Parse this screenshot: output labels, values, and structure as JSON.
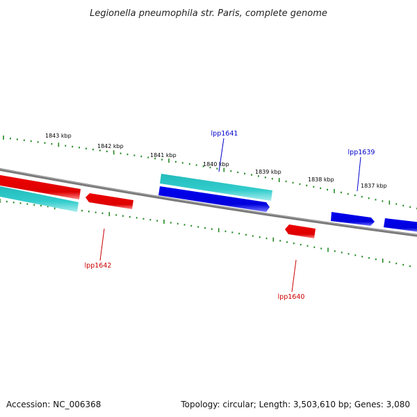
{
  "title": "Legionella pneumophila str. Paris, complete genome",
  "footer": {
    "accession": "Accession: NC_006368",
    "stats": "Topology: circular; Length: 3,503,610 bp; Genes: 3,080"
  },
  "kbp_labels": [
    "1843 kbp",
    "1842 kbp",
    "1841 kbp",
    "1840 kbp",
    "1839 kbp",
    "1838 kbp",
    "1837 kbp"
  ],
  "gene_labels": [
    {
      "text": "lpp1641",
      "color": "#0000cc"
    },
    {
      "text": "lpp1639",
      "color": "#0000cc"
    },
    {
      "text": "lpp1642",
      "color": "#cc0000"
    },
    {
      "text": "lpp1640",
      "color": "#cc0000"
    }
  ],
  "colors": {
    "forward_gene": "#0000ee",
    "reverse_gene": "#ee0000",
    "cds_cyan": "#22cccc",
    "backbone": "#777777",
    "ticks": "#228822"
  }
}
